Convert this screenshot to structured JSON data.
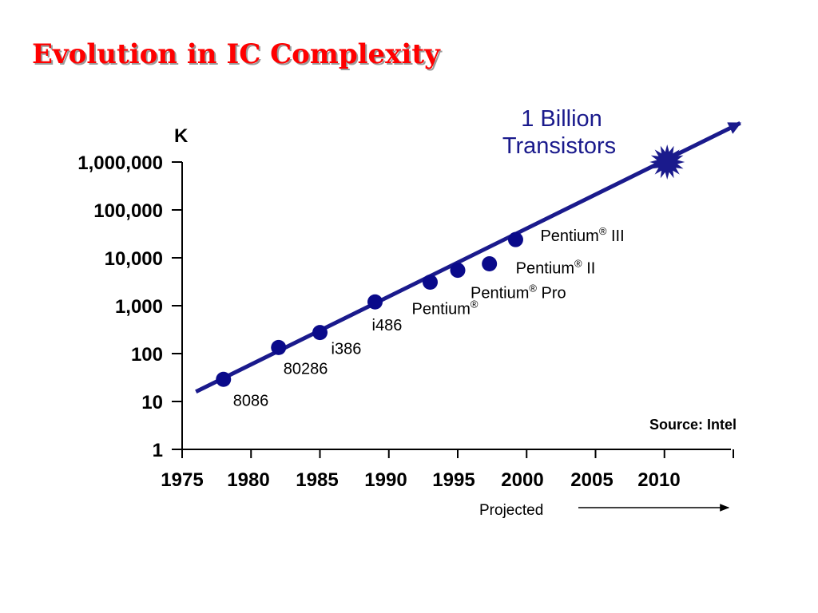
{
  "title": "Evolution in IC Complexity",
  "colors": {
    "title": "#ff0000",
    "trend": "#1a1a8c",
    "points": "#0a0a8a",
    "callout": "#1a1a8c"
  },
  "chart_data": {
    "type": "scatter",
    "title": "Evolution in IC Complexity",
    "x_ticks": [
      "1975",
      "1980",
      "1985",
      "1990",
      "1995",
      "2000",
      "2005",
      "2010"
    ],
    "y_ticks": [
      "1",
      "10",
      "100",
      "1,000",
      "10,000",
      "100,000",
      "1,000,000"
    ],
    "y_unit": "K",
    "y_scale": "log",
    "xlim": [
      1975,
      2015
    ],
    "ylim": [
      1,
      1000000
    ],
    "grid": false,
    "points": [
      {
        "label": "8086",
        "x": 1978,
        "y": 29
      },
      {
        "label": "80286",
        "x": 1982,
        "y": 134
      },
      {
        "label": "i386",
        "x": 1985,
        "y": 275
      },
      {
        "label": "i486",
        "x": 1989,
        "y": 1200
      },
      {
        "label": "Pentium",
        "sup": "®",
        "x": 1993,
        "y": 3100
      },
      {
        "label": "Pentium",
        "sup": "®",
        "suffix": " Pro",
        "x": 1995,
        "y": 5500
      },
      {
        "label": "Pentium",
        "sup": "®",
        "suffix": " II",
        "x": 1997.3,
        "y": 7500
      },
      {
        "label": "Pentium",
        "sup": "®",
        "suffix": " III",
        "x": 1999.2,
        "y": 24000
      }
    ],
    "trend_line": {
      "from": {
        "x": 1976,
        "y": 16
      },
      "to": {
        "x": 2015.5,
        "y": 6500000
      }
    },
    "milestone": {
      "x": 2010.2,
      "y": 1000000,
      "label_line1": "1 Billion",
      "label_line2": "Transistors"
    },
    "source": "Source:  Intel",
    "projected_label": "Projected"
  }
}
